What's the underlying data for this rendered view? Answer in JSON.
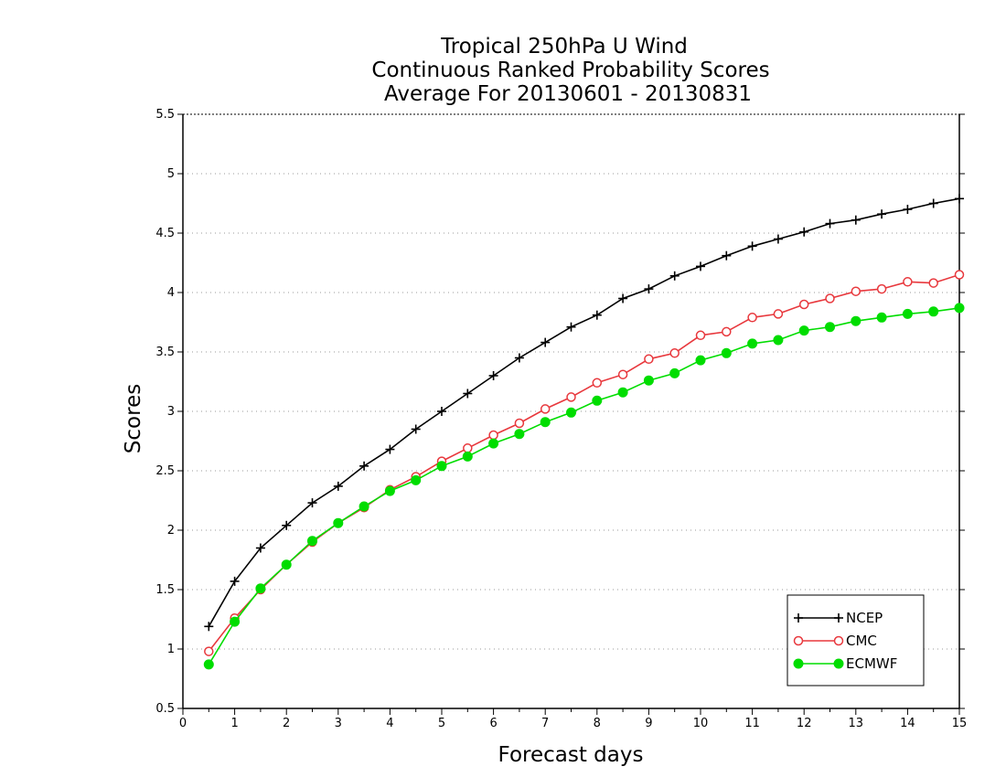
{
  "chart_data": {
    "type": "line",
    "title_lines": [
      "Tropical 250hPa U Wind",
      "Continuous Ranked Probability Scores",
      "Average For 20130601 - 20130831"
    ],
    "xlabel": "Forecast days",
    "ylabel": "Scores",
    "xlim": [
      0,
      15
    ],
    "ylim": [
      0.5,
      5.5
    ],
    "xticks": [
      0,
      1,
      2,
      3,
      4,
      5,
      6,
      7,
      8,
      9,
      10,
      11,
      12,
      13,
      14,
      15
    ],
    "yticks": [
      0.5,
      1,
      1.5,
      2,
      2.5,
      3,
      3.5,
      4,
      4.5,
      5,
      5.5
    ],
    "ytick_labels": [
      "0.5",
      "1",
      "1.5",
      "2",
      "2.5",
      "3",
      "3.5",
      "4",
      "4.5",
      "5",
      "5.5"
    ],
    "grid": "horizontal-dotted",
    "legend_position": "bottom-right",
    "x": [
      0.5,
      1,
      1.5,
      2,
      2.5,
      3,
      3.5,
      4,
      4.5,
      5,
      5.5,
      6,
      6.5,
      7,
      7.5,
      8,
      8.5,
      9,
      9.5,
      10,
      10.5,
      11,
      11.5,
      12,
      12.5,
      13,
      13.5,
      14,
      14.5,
      15
    ],
    "series": [
      {
        "name": "NCEP",
        "color": "#000000",
        "marker": "plus",
        "values": [
          1.19,
          1.57,
          1.85,
          2.04,
          2.23,
          2.37,
          2.54,
          2.68,
          2.85,
          3.0,
          3.15,
          3.3,
          3.45,
          3.58,
          3.71,
          3.81,
          3.95,
          4.03,
          4.14,
          4.22,
          4.31,
          4.39,
          4.45,
          4.51,
          4.58,
          4.61,
          4.66,
          4.7,
          4.75,
          4.79
        ]
      },
      {
        "name": "CMC",
        "color": "#e8383d",
        "marker": "open-circle",
        "values": [
          0.98,
          1.26,
          1.5,
          1.71,
          1.9,
          2.06,
          2.19,
          2.34,
          2.45,
          2.58,
          2.69,
          2.8,
          2.9,
          3.02,
          3.12,
          3.24,
          3.31,
          3.44,
          3.49,
          3.64,
          3.67,
          3.79,
          3.82,
          3.9,
          3.95,
          4.01,
          4.03,
          4.09,
          4.08,
          4.15
        ]
      },
      {
        "name": "ECMWF",
        "color": "#00dd00",
        "marker": "filled-circle",
        "values": [
          0.87,
          1.23,
          1.51,
          1.71,
          1.91,
          2.06,
          2.2,
          2.33,
          2.42,
          2.54,
          2.62,
          2.73,
          2.81,
          2.91,
          2.99,
          3.09,
          3.16,
          3.26,
          3.32,
          3.43,
          3.49,
          3.57,
          3.6,
          3.68,
          3.71,
          3.76,
          3.79,
          3.82,
          3.84,
          3.87
        ]
      }
    ]
  }
}
